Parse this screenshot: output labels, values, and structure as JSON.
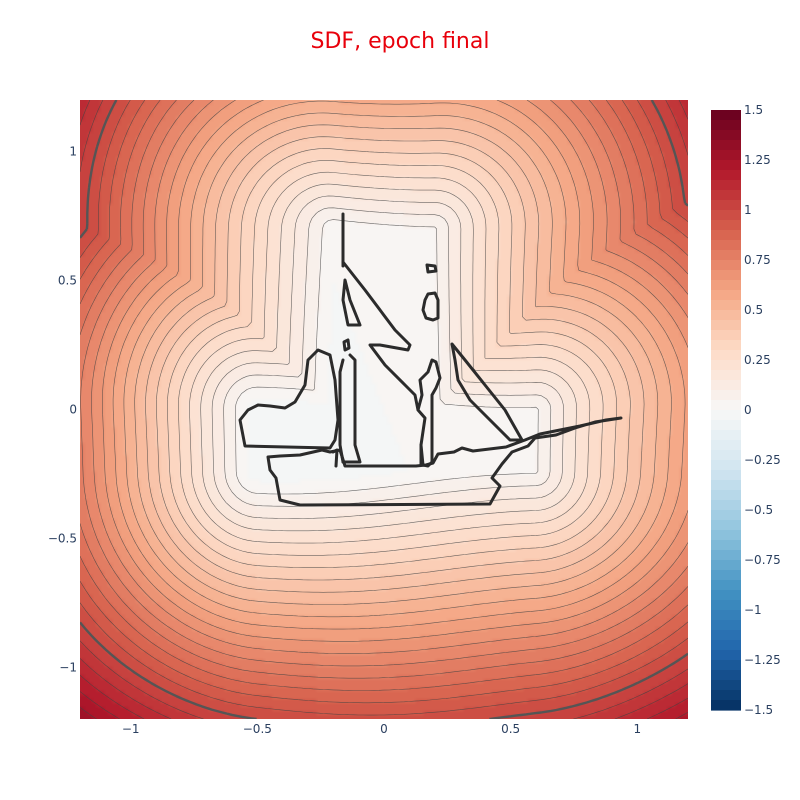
{
  "chart_data": {
    "type": "contour",
    "title": "SDF, epoch final",
    "title_color": "#e8000b",
    "xlabel": "",
    "ylabel": "",
    "x_range": [
      -1.2,
      1.2
    ],
    "y_range": [
      -1.2,
      1.2
    ],
    "x_ticks": [
      -1,
      -0.5,
      0,
      0.5,
      1
    ],
    "x_tick_labels": [
      "−1",
      "−0.5",
      "0",
      "0.5",
      "1"
    ],
    "y_ticks": [
      1,
      0.5,
      0,
      -0.5,
      -1
    ],
    "y_tick_labels": [
      "1",
      "0.5",
      "0",
      "−0.5",
      "−1"
    ],
    "colorscale_name": "RdBu (reversed)",
    "colorbar": {
      "range": [
        -1.5,
        1.5
      ],
      "ticks": [
        1.5,
        1.25,
        1,
        0.75,
        0.5,
        0.25,
        0,
        -0.25,
        -0.5,
        -0.75,
        -1,
        -1.25,
        -1.5
      ],
      "tick_labels": [
        "1.5",
        "1.25",
        "1",
        "0.75",
        "0.5",
        "0.25",
        "0",
        "−0.25",
        "−0.5",
        "−0.75",
        "−1",
        "−1.25",
        "−1.5"
      ],
      "colors": [
        "#053061",
        "#2166ac",
        "#4393c3",
        "#92c5de",
        "#d1e5f0",
        "#f7f7f7",
        "#fddbc7",
        "#f4a582",
        "#d6604d",
        "#b2182b",
        "#67001f"
      ]
    },
    "zero_contour_shape": "sailing ship",
    "contour_levels_step": 0.05,
    "highlighted_levels": [
      0,
      1
    ],
    "value_range_shown": [
      0,
      1.5
    ]
  }
}
